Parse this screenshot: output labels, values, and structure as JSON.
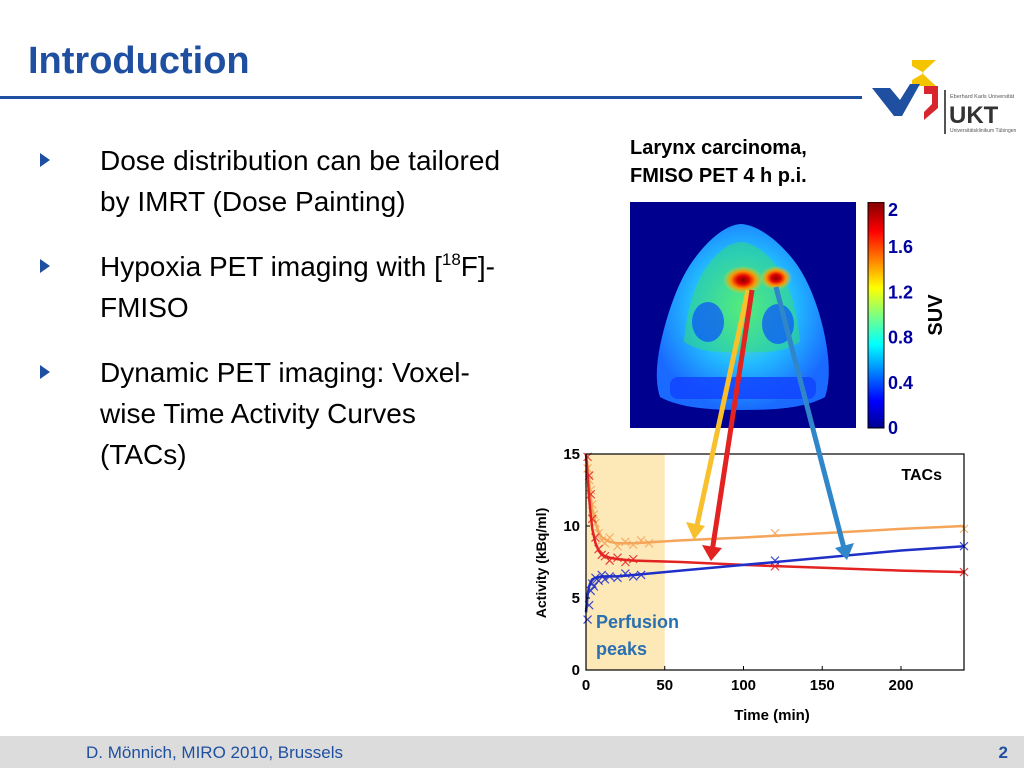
{
  "slide": {
    "title": "Introduction",
    "bullets": [
      {
        "text": "Dose distribution can be tailored by IMRT (Dose Painting)"
      },
      {
        "pre": "Hypoxia PET imaging with [",
        "sup": "18",
        "post": "F]-FMISO"
      },
      {
        "text": "Dynamic PET imaging: Voxel-wise Time Activity Curves (TACs)"
      }
    ]
  },
  "logo": {
    "brand": "UKT",
    "line1": "Eberhard Karls Universität",
    "line2": "Universitätsklinikum Tübingen",
    "colors": {
      "yellow": "#f5c400",
      "blue": "#1f4fa0",
      "red": "#d8262e",
      "gray": "#555555"
    }
  },
  "pet": {
    "caption_line1": "Larynx carcinoma,",
    "caption_line2": "FMISO PET 4 h p.i.",
    "colorbar_ticks": [
      "2",
      "1.6",
      "1.2",
      "0.8",
      "0.4",
      "0"
    ],
    "colorbar_label": "SUV"
  },
  "chart_data": {
    "type": "line",
    "ylabel": "Activity (kBq/ml)",
    "xlabel": "Time (min)",
    "xlim": [
      0,
      240
    ],
    "ylim": [
      0,
      15
    ],
    "xticks": [
      "0",
      "50",
      "100",
      "150",
      "200"
    ],
    "yticks": [
      "0",
      "5",
      "10",
      "15"
    ],
    "legend_label": "TACs",
    "annotation_line1": "Perfusion",
    "annotation_line2": "peaks",
    "shaded_region": [
      0,
      50
    ],
    "series": [
      {
        "color": "#f5a55a",
        "fit_x": [
          0,
          1,
          2,
          3,
          4,
          6,
          8,
          10,
          15,
          20,
          30,
          60,
          100,
          150,
          200,
          240
        ],
        "fit_y": [
          15,
          14.2,
          13,
          12,
          11.2,
          10.2,
          9.6,
          9.2,
          8.9,
          8.8,
          8.8,
          9.0,
          9.2,
          9.5,
          9.8,
          10.0
        ],
        "points_x": [
          1,
          2,
          3,
          4,
          5,
          6,
          8,
          10,
          12,
          15,
          20,
          25,
          30,
          35,
          40,
          120,
          240
        ],
        "points_y": [
          14,
          13.2,
          12.5,
          11.5,
          10.8,
          10.2,
          9.5,
          9.0,
          8.8,
          9.2,
          8.6,
          8.9,
          8.7,
          9.0,
          8.8,
          9.5,
          9.8
        ]
      },
      {
        "color": "#e32222",
        "fit_x": [
          0,
          1,
          2,
          3,
          4,
          6,
          8,
          10,
          15,
          20,
          30,
          60,
          100,
          150,
          200,
          240
        ],
        "fit_y": [
          15,
          13.5,
          12,
          10.8,
          9.8,
          8.8,
          8.3,
          8.0,
          7.8,
          7.7,
          7.6,
          7.5,
          7.3,
          7.1,
          6.9,
          6.8
        ],
        "points_x": [
          1,
          2,
          3,
          4,
          6,
          8,
          10,
          12,
          15,
          20,
          25,
          30,
          120,
          240
        ],
        "points_y": [
          14.8,
          13.5,
          12.2,
          10.5,
          9.2,
          8.4,
          8.0,
          7.9,
          7.6,
          7.8,
          7.5,
          7.7,
          7.2,
          6.8
        ]
      },
      {
        "color": "#1f2fc8",
        "fit_x": [
          0,
          1,
          2,
          3,
          4,
          6,
          8,
          10,
          15,
          20,
          30,
          60,
          100,
          150,
          200,
          240
        ],
        "fit_y": [
          4.0,
          5.2,
          5.8,
          6.1,
          6.3,
          6.4,
          6.45,
          6.5,
          6.5,
          6.5,
          6.6,
          6.9,
          7.3,
          7.8,
          8.3,
          8.6
        ],
        "points_x": [
          1,
          2,
          3,
          4,
          5,
          6,
          8,
          10,
          12,
          15,
          20,
          25,
          30,
          35,
          120,
          240
        ],
        "points_y": [
          3.5,
          4.5,
          5.5,
          6.0,
          5.8,
          6.4,
          6.2,
          6.6,
          6.3,
          6.5,
          6.4,
          6.7,
          6.5,
          6.6,
          7.6,
          8.6
        ]
      }
    ]
  },
  "footer": {
    "text": "D. Mönnich, MIRO 2010, Brussels",
    "page": "2"
  }
}
